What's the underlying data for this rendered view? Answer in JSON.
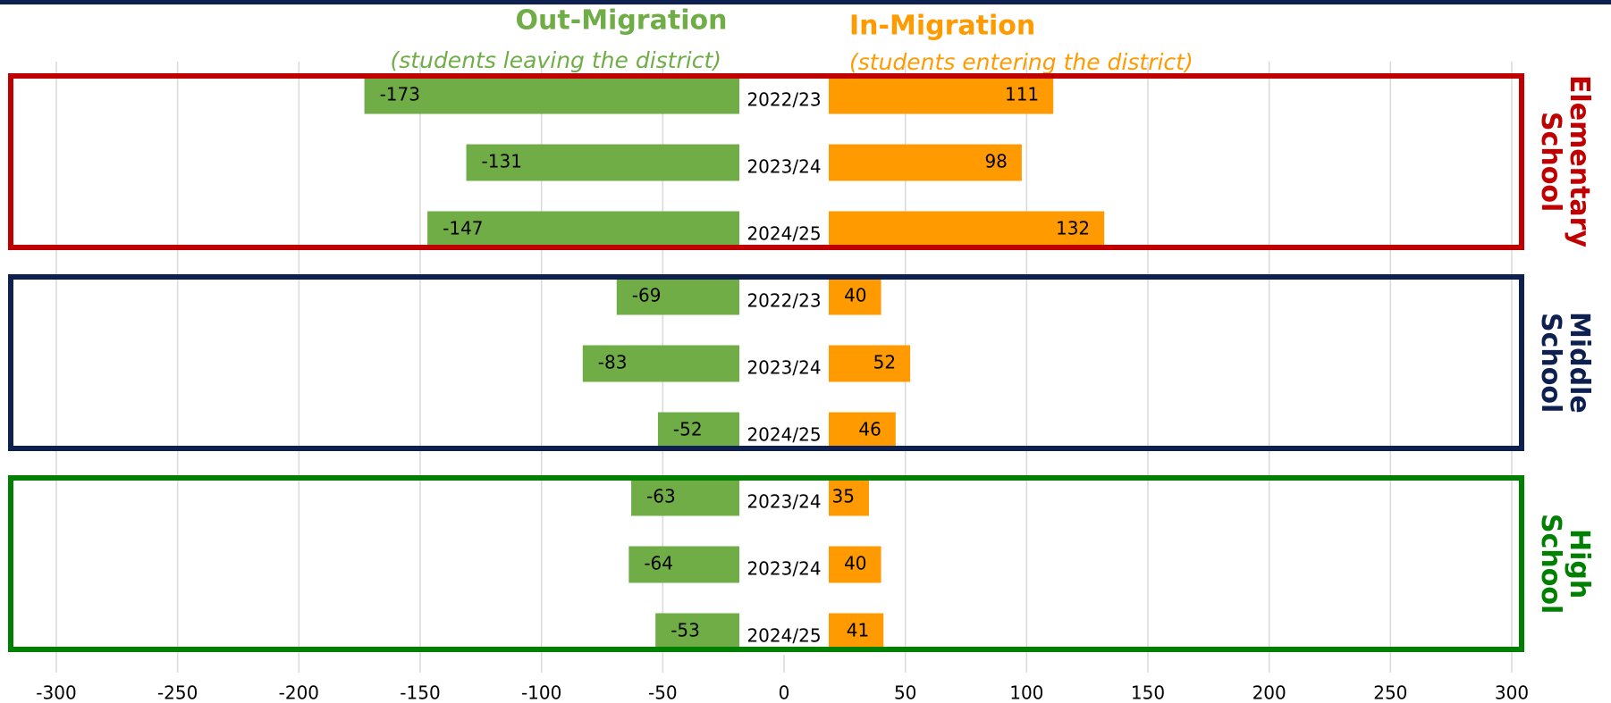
{
  "chart_data": {
    "type": "bar",
    "orientation": "horizontal",
    "series": [
      {
        "name": "Out-Migration",
        "subtitle": "(students leaving the district)",
        "color": "#70ad47",
        "values": [
          -173,
          -131,
          -147,
          -69,
          -83,
          -52,
          -63,
          -64,
          -53
        ]
      },
      {
        "name": "In-Migration",
        "subtitle": "(students entering the district)",
        "color": "#ff9a00",
        "values": [
          111,
          98,
          132,
          40,
          52,
          46,
          35,
          40,
          41
        ]
      }
    ],
    "groups": [
      {
        "label": "Elementary School",
        "color": "#c00000",
        "categories": [
          "2022/23",
          "2023/24",
          "2024/25"
        ]
      },
      {
        "label": "Middle School",
        "color": "#0e2050",
        "categories": [
          "2022/23",
          "2023/24",
          "2024/25"
        ]
      },
      {
        "label": "High School",
        "color": "#008000",
        "categories": [
          "2023/24",
          "2023/24",
          "2024/25"
        ]
      }
    ],
    "xlim": [
      -300,
      300
    ],
    "xticks": [
      -300,
      -250,
      -200,
      -150,
      -100,
      -50,
      0,
      50,
      100,
      150,
      200,
      250,
      300
    ],
    "grid": true
  }
}
